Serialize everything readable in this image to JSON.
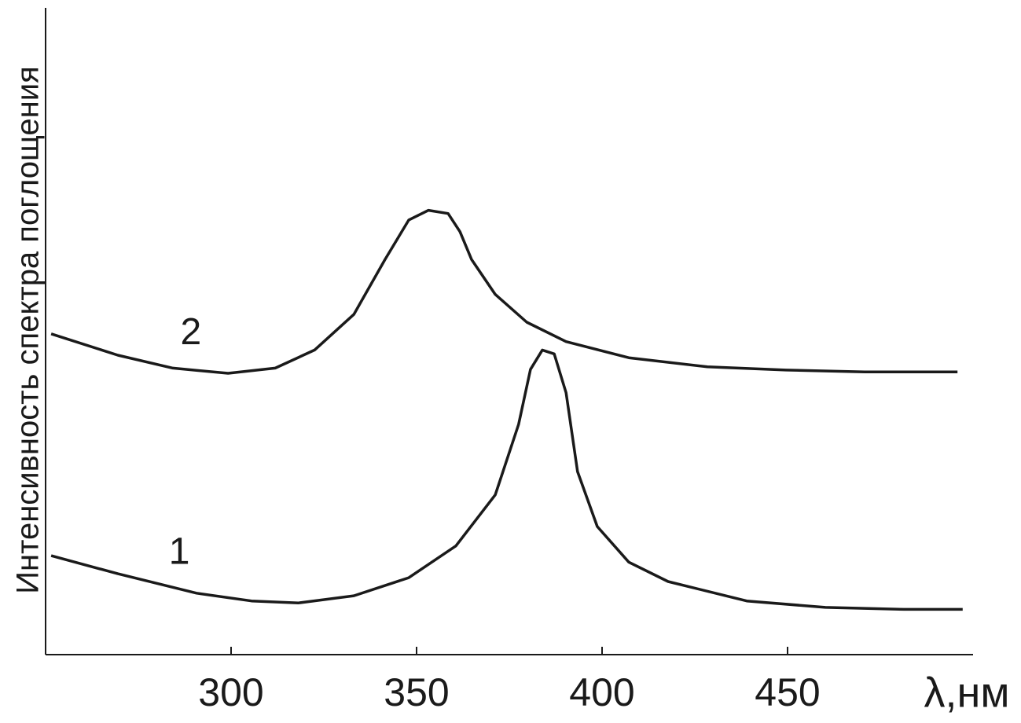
{
  "chart_data": {
    "type": "line",
    "x_label": "λ,нм",
    "y_label": "Интенсивность спектра поглощения",
    "xlim": [
      250,
      500
    ],
    "ylim": [
      0,
      100
    ],
    "xticks": [
      300,
      350,
      400,
      450
    ],
    "color": "#1a1a1a",
    "series": [
      {
        "name": "1",
        "color": "#1a1a1a",
        "x": [
          251.5,
          269.5,
          290.7,
          305.5,
          318.2,
          333.1,
          347.9,
          360.6,
          371.2,
          377.5,
          380.7,
          383.9,
          387.1,
          390.3,
          393.4,
          398.7,
          407.2,
          417.8,
          439.0,
          460.2,
          481.4,
          497.2
        ],
        "values": [
          15.3,
          12.5,
          9.5,
          8.3,
          8.0,
          9.1,
          11.9,
          16.8,
          24.7,
          35.6,
          44.1,
          47.1,
          46.5,
          40.5,
          28.3,
          19.8,
          14.3,
          11.3,
          8.3,
          7.3,
          7.0,
          7.0
        ]
      },
      {
        "name": "2",
        "color": "#1a1a1a",
        "x": [
          251.5,
          269.5,
          284.3,
          299.2,
          311.9,
          322.5,
          333.1,
          341.5,
          347.9,
          353.2,
          358.5,
          361.7,
          364.8,
          371.2,
          379.7,
          390.3,
          407.2,
          428.4,
          449.6,
          470.8,
          495.8
        ],
        "values": [
          49.6,
          46.3,
          44.3,
          43.5,
          44.3,
          47.1,
          52.6,
          61.1,
          67.2,
          68.7,
          68.2,
          65.4,
          61.1,
          55.7,
          51.4,
          48.4,
          45.9,
          44.5,
          44.0,
          43.7,
          43.7
        ]
      }
    ]
  }
}
